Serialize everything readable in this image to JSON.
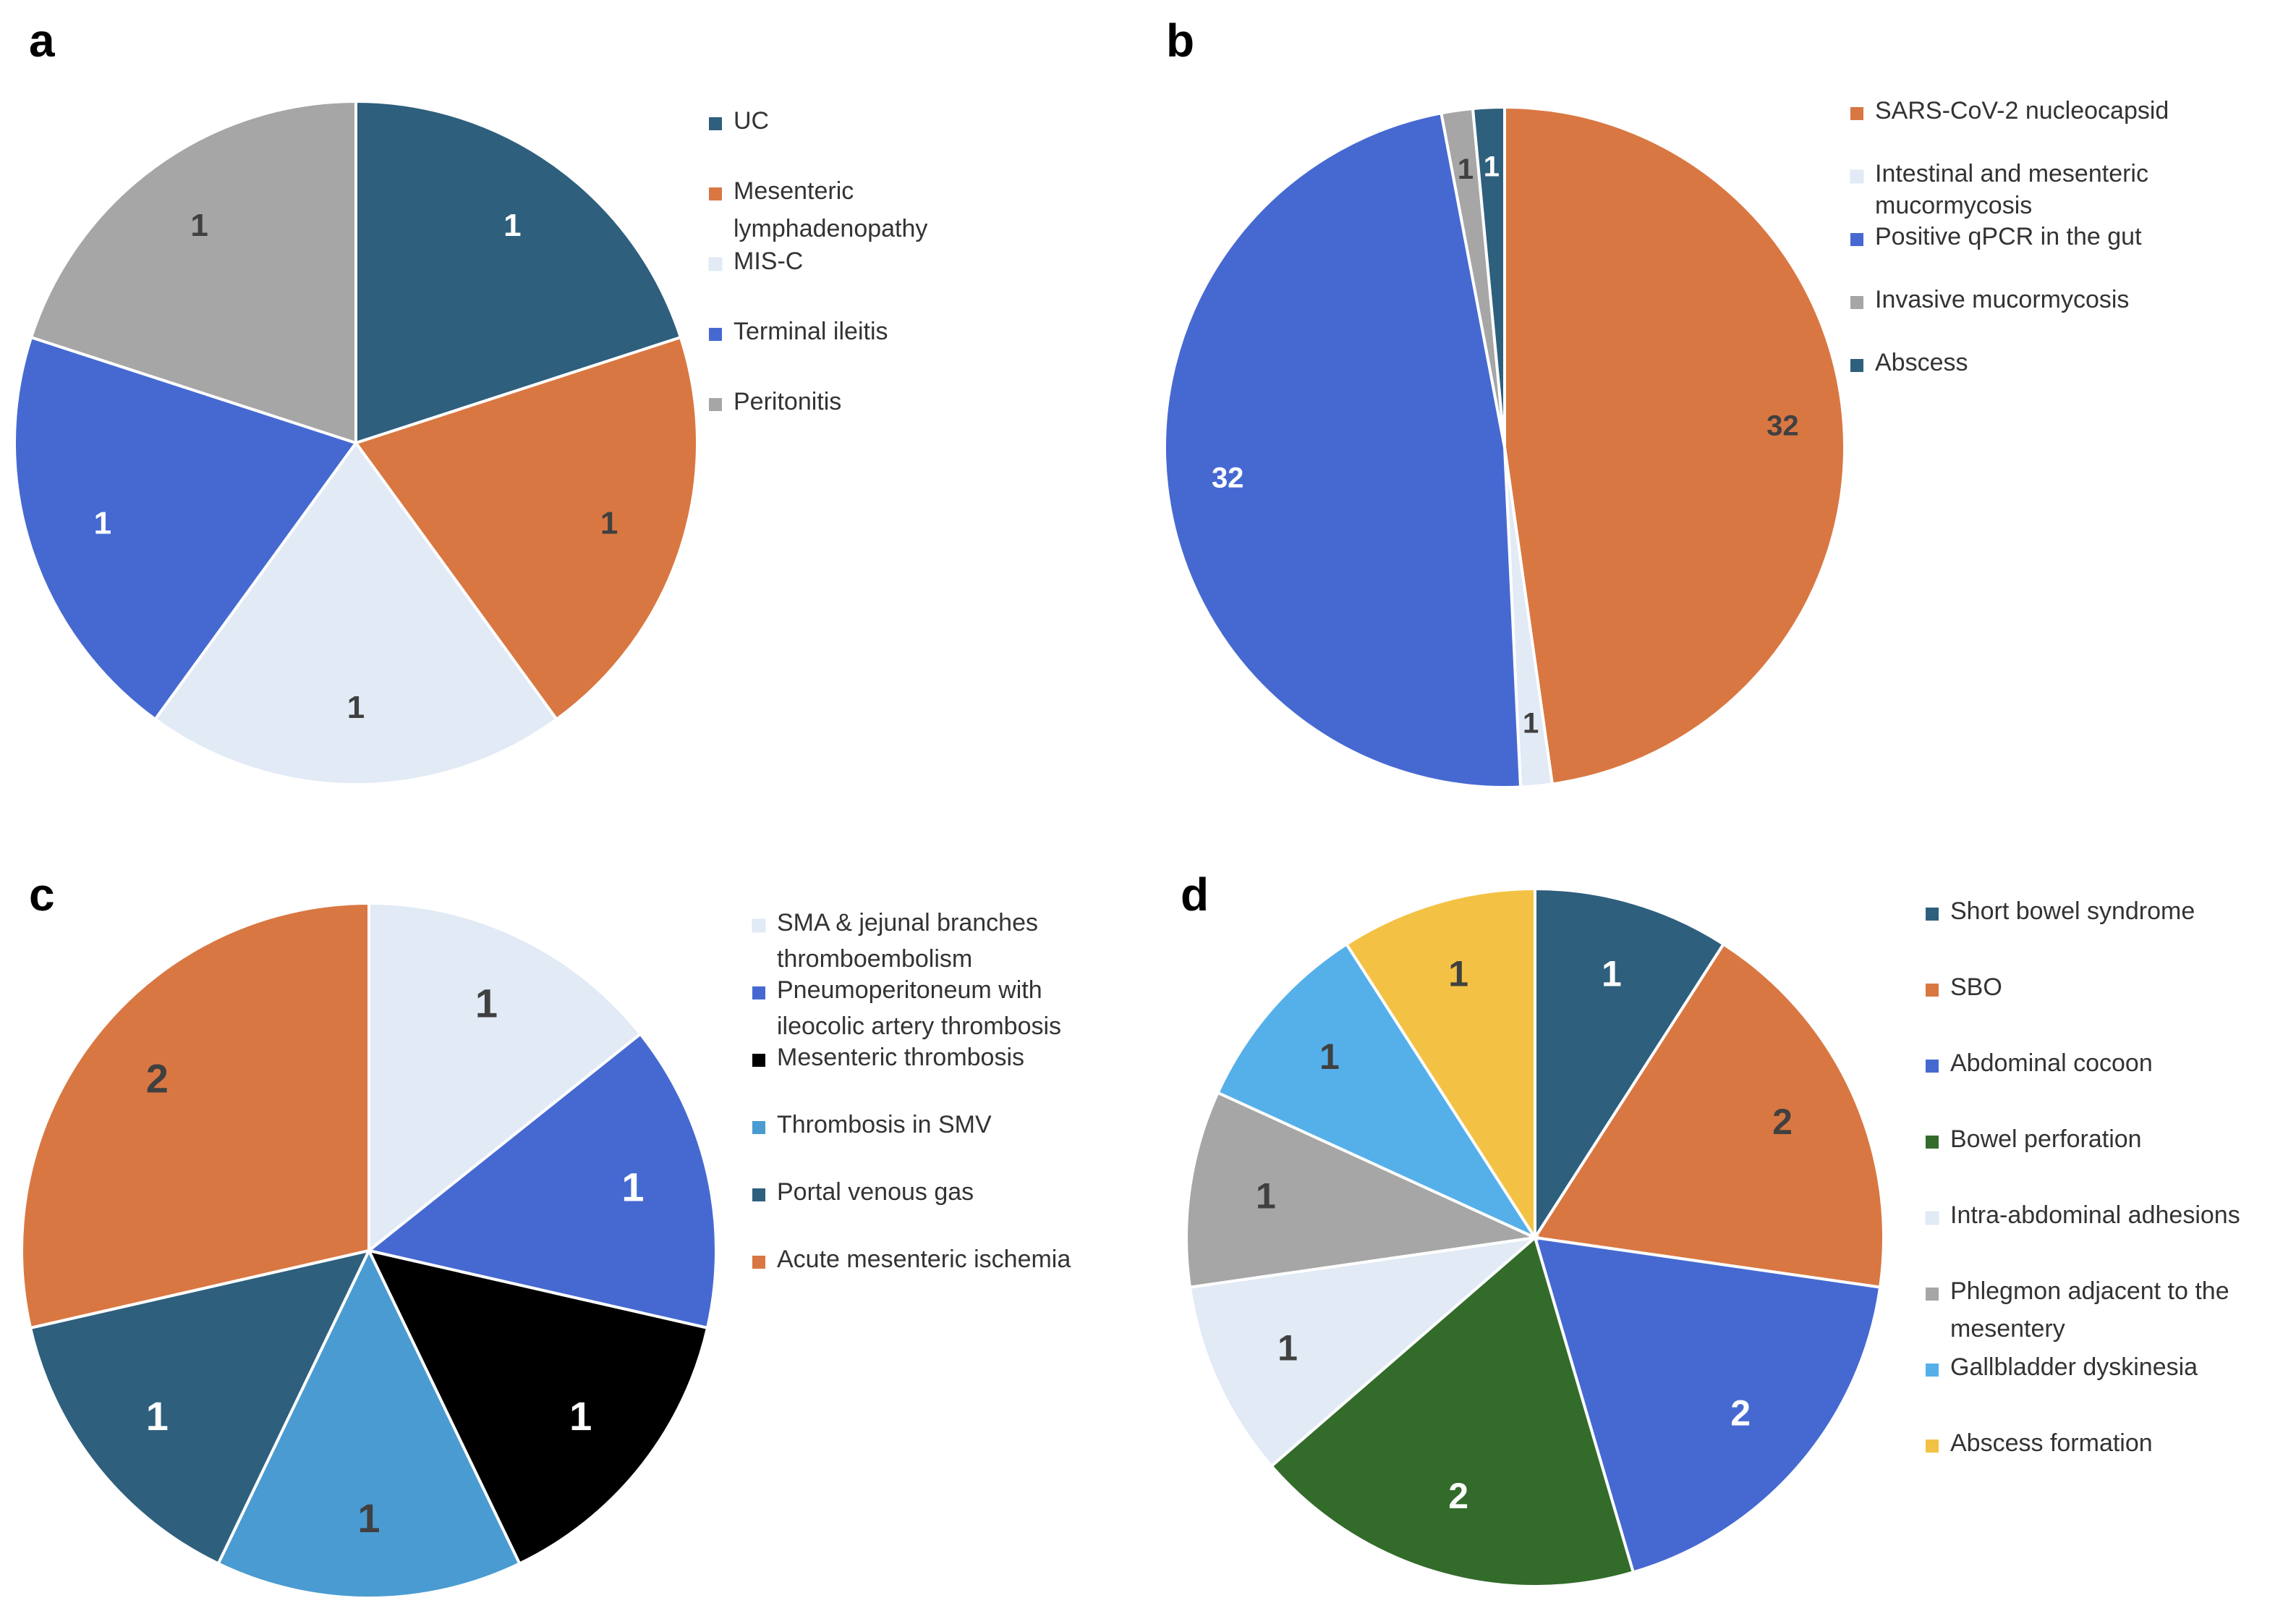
{
  "chart_data": [
    {
      "type": "pie",
      "panel": "a",
      "categories": [
        "UC",
        "Mesenteric lymphadenopathy",
        "MIS-C",
        "Terminal ileitis",
        "Peritonitis"
      ],
      "legend_lines": [
        [
          "UC"
        ],
        [
          "Mesenteric",
          "lymphadenopathy"
        ],
        [
          "MIS-C"
        ],
        [
          "Terminal ileitis"
        ],
        [
          "Peritonitis"
        ]
      ],
      "values": [
        1,
        1,
        1,
        1,
        1
      ],
      "data_labels": [
        "1",
        "1",
        "1",
        "1",
        "1"
      ],
      "colors": [
        "#2E5F7D",
        "#D97742",
        "#E1EAF5",
        "#4669D1",
        "#A6A6A6"
      ],
      "label_colors": [
        "#ffffff",
        "#404040",
        "#404040",
        "#ffffff",
        "#404040"
      ],
      "legend_placement": "right"
    },
    {
      "type": "pie",
      "panel": "b",
      "categories": [
        "SARS-CoV-2 nucleocapsid",
        "Intestinal and mesenteric mucormycosis",
        "Positive qPCR in the gut",
        "Invasive mucormycosis",
        "Abscess"
      ],
      "legend_lines": [
        [
          "SARS-CoV-2 nucleocapsid"
        ],
        [
          "Intestinal and mesenteric",
          "mucormycosis"
        ],
        [
          "Positive qPCR in the gut"
        ],
        [
          "Invasive mucormycosis"
        ],
        [
          "Abscess"
        ]
      ],
      "values": [
        32,
        1,
        32,
        1,
        1
      ],
      "data_labels": [
        "32",
        "1",
        "32",
        "1",
        "1"
      ],
      "colors": [
        "#D97742",
        "#E1EAF5",
        "#4669D1",
        "#A6A6A6",
        "#2E5F7D"
      ],
      "label_colors": [
        "#404040",
        "#404040",
        "#ffffff",
        "#404040",
        "#ffffff"
      ],
      "legend_placement": "right"
    },
    {
      "type": "pie",
      "panel": "c",
      "categories": [
        "SMA & jejunal branches thromboembolism",
        "Pneumoperitoneum with ileocolic artery thrombosis",
        "Mesenteric thrombosis",
        "Thrombosis in SMV",
        "Portal venous gas",
        "Acute mesenteric ischemia"
      ],
      "legend_lines": [
        [
          "SMA & jejunal branches",
          "thromboembolism"
        ],
        [
          "Pneumoperitoneum with",
          "ileocolic artery thrombosis"
        ],
        [
          "Mesenteric thrombosis"
        ],
        [
          "Thrombosis in SMV"
        ],
        [
          "Portal venous gas"
        ],
        [
          "Acute mesenteric ischemia"
        ]
      ],
      "values": [
        1,
        1,
        1,
        1,
        1,
        2
      ],
      "data_labels": [
        "1",
        "1",
        "1",
        "1",
        "1",
        "2"
      ],
      "colors": [
        "#E1EAF5",
        "#4669D1",
        "#000000",
        "#4A9BD1",
        "#2E5F7D",
        "#D97742"
      ],
      "label_colors": [
        "#404040",
        "#ffffff",
        "#ffffff",
        "#404040",
        "#ffffff",
        "#404040"
      ],
      "legend_placement": "right"
    },
    {
      "type": "pie",
      "panel": "d",
      "categories": [
        "Short bowel syndrome",
        "SBO",
        "Abdominal cocoon",
        "Bowel perforation",
        "Intra-abdominal adhesions",
        "Phlegmon adjacent to the mesentery",
        "Gallbladder dyskinesia",
        "Abscess formation"
      ],
      "legend_lines": [
        [
          "Short bowel syndrome"
        ],
        [
          "SBO"
        ],
        [
          "Abdominal cocoon"
        ],
        [
          "Bowel perforation"
        ],
        [
          "Intra-abdominal adhesions"
        ],
        [
          "Phlegmon adjacent to the",
          "mesentery"
        ],
        [
          "Gallbladder dyskinesia"
        ],
        [
          "Abscess formation"
        ]
      ],
      "values": [
        1,
        2,
        2,
        2,
        1,
        1,
        1,
        1
      ],
      "data_labels": [
        "1",
        "2",
        "2",
        "2",
        "1",
        "1",
        "1",
        "1"
      ],
      "colors": [
        "#2E5F7D",
        "#D97742",
        "#4669D1",
        "#336B2B",
        "#E1EAF5",
        "#A6A6A6",
        "#55B0EA",
        "#F3C244"
      ],
      "label_colors": [
        "#ffffff",
        "#404040",
        "#ffffff",
        "#ffffff",
        "#404040",
        "#404040",
        "#404040",
        "#404040"
      ],
      "legend_placement": "right"
    }
  ]
}
